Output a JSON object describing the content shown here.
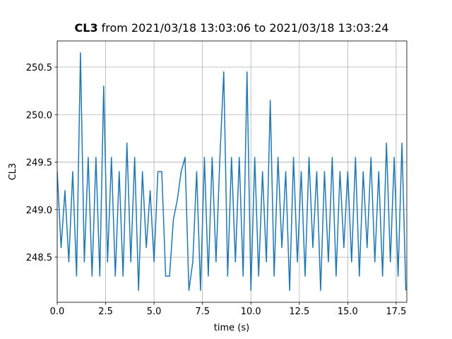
{
  "chart_data": {
    "type": "line",
    "title": {
      "signal": "CL3",
      "range": "from 2021/03/18 13:03:06 to 2021/03/18 13:03:24"
    },
    "x_label": "time (s)",
    "y_label": "CL3",
    "x": [
      0,
      0.2,
      0.4,
      0.6,
      0.8,
      1.0,
      1.2,
      1.4,
      1.6,
      1.8,
      2.0,
      2.2,
      2.4,
      2.6,
      2.8,
      3.0,
      3.2,
      3.4,
      3.6,
      3.8,
      4.0,
      4.2,
      4.4,
      4.6,
      4.8,
      5.0,
      5.2,
      5.4,
      5.6,
      5.8,
      6.0,
      6.2,
      6.4,
      6.6,
      6.8,
      7.0,
      7.2,
      7.4,
      7.6,
      7.8,
      8.0,
      8.2,
      8.4,
      8.6,
      8.8,
      9.0,
      9.2,
      9.4,
      9.6,
      9.8,
      10.0,
      10.2,
      10.4,
      10.6,
      10.8,
      11.0,
      11.2,
      11.4,
      11.6,
      11.8,
      12.0,
      12.2,
      12.4,
      12.6,
      12.8,
      13.0,
      13.2,
      13.4,
      13.6,
      13.8,
      14.0,
      14.2,
      14.4,
      14.6,
      14.8,
      15.0,
      15.2,
      15.4,
      15.6,
      15.8,
      16.0,
      16.2,
      16.4,
      16.6,
      16.8,
      17.0,
      17.2,
      17.4,
      17.6,
      17.8,
      18.0
    ],
    "series": [
      {
        "name": "CL3",
        "color": "#1f77b4",
        "values": [
          249.4,
          248.6,
          249.2,
          248.45,
          249.4,
          248.3,
          250.65,
          248.45,
          249.55,
          248.3,
          249.55,
          248.3,
          250.3,
          248.45,
          249.55,
          248.3,
          249.4,
          248.3,
          249.7,
          248.45,
          249.55,
          248.15,
          249.4,
          248.6,
          249.2,
          248.45,
          249.4,
          249.4,
          248.3,
          248.3,
          248.9,
          249.1,
          249.4,
          249.55,
          248.15,
          248.45,
          249.4,
          248.15,
          249.55,
          248.3,
          249.55,
          248.45,
          249.55,
          250.45,
          248.3,
          249.55,
          248.45,
          249.55,
          248.3,
          250.45,
          248.15,
          249.55,
          248.3,
          249.4,
          248.45,
          250.15,
          248.3,
          249.55,
          248.6,
          249.4,
          248.15,
          249.55,
          248.45,
          249.4,
          248.3,
          249.55,
          248.6,
          249.4,
          248.15,
          249.4,
          248.45,
          249.55,
          248.3,
          249.4,
          248.6,
          249.4,
          248.45,
          249.55,
          248.3,
          249.4,
          248.6,
          249.55,
          248.45,
          249.4,
          248.3,
          249.7,
          248.45,
          249.55,
          248.3,
          249.7,
          248.15
        ]
      }
    ],
    "xlim": [
      0,
      18.05
    ],
    "ylim": [
      248.025,
      250.775
    ],
    "xticks": [
      {
        "value": 0,
        "label": "0.0"
      },
      2.5,
      {
        "value": 5,
        "label": "5.0"
      },
      7.5,
      {
        "value": 10,
        "label": "10.0"
      },
      12.5,
      {
        "value": 15,
        "label": "15.0"
      },
      17.5
    ],
    "yticks": [
      248.5,
      {
        "value": 249,
        "label": "249.0"
      },
      249.5,
      {
        "value": 250,
        "label": "250.0"
      },
      250.5
    ],
    "grid": true
  }
}
